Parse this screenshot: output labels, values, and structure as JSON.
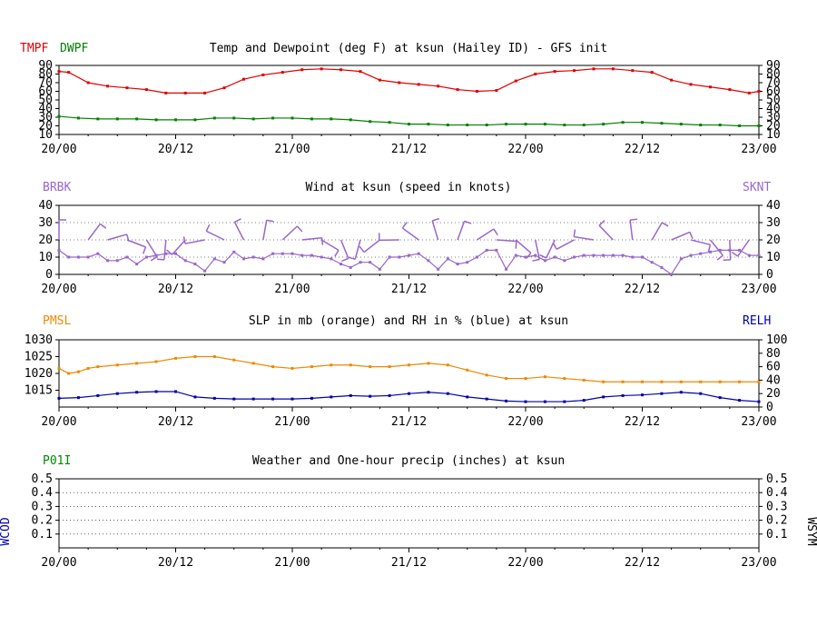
{
  "colors": {
    "temp": "#e00000",
    "dewpoint": "#008000",
    "wind": "#9966cc",
    "pressure": "#ee8800",
    "rh": "#0000aa",
    "precip": "#008800",
    "wcod": "#0000aa",
    "grid": "#000000"
  },
  "x_tick_labels": [
    "20/00",
    "20/12",
    "21/00",
    "21/12",
    "22/00",
    "22/12",
    "23/00"
  ],
  "chart_data": [
    {
      "type": "line",
      "title": "Temp and Dewpoint (deg F) at ksun  (Hailey ID) - GFS init",
      "left_label_1": "TMPF",
      "left_label_2": "DWPF",
      "ylim": [
        10,
        90
      ],
      "yticks": [
        "10",
        "20",
        "30",
        "40",
        "50",
        "60",
        "70",
        "80",
        "90"
      ],
      "x_range_hours": [
        0,
        72
      ],
      "series": [
        {
          "name": "TMPF",
          "x": [
            0,
            1,
            3,
            5,
            7,
            9,
            11,
            13,
            15,
            17,
            19,
            21,
            23,
            25,
            27,
            29,
            31,
            33,
            35,
            37,
            39,
            41,
            43,
            45,
            47,
            49,
            51,
            53,
            55,
            57,
            59,
            61,
            63,
            65,
            67,
            69,
            71,
            72
          ],
          "y": [
            83,
            82,
            70,
            66,
            64,
            62,
            58,
            58,
            58,
            64,
            74,
            79,
            82,
            85,
            86,
            85,
            83,
            73,
            70,
            68,
            66,
            62,
            60,
            61,
            72,
            80,
            83,
            84,
            86,
            86,
            84,
            82,
            73,
            68,
            65,
            62,
            58,
            60
          ]
        },
        {
          "name": "DWPF",
          "x": [
            0,
            2,
            4,
            6,
            8,
            10,
            12,
            14,
            16,
            18,
            20,
            22,
            24,
            26,
            28,
            30,
            32,
            34,
            36,
            38,
            40,
            42,
            44,
            46,
            48,
            50,
            52,
            54,
            56,
            58,
            60,
            62,
            64,
            66,
            68,
            70,
            72
          ],
          "y": [
            31,
            29,
            28,
            28,
            28,
            27,
            27,
            27,
            29,
            29,
            28,
            29,
            29,
            28,
            28,
            27,
            25,
            24,
            22,
            22,
            21,
            21,
            21,
            22,
            22,
            22,
            21,
            21,
            22,
            24,
            24,
            23,
            22,
            21,
            21,
            20,
            20
          ]
        }
      ]
    },
    {
      "type": "line",
      "title": "Wind at  ksun  (speed in knots)",
      "left_label": "BRBK",
      "right_label": "SKNT",
      "ylim": [
        0,
        40
      ],
      "yticks": [
        "0",
        "10",
        "20",
        "30",
        "40"
      ],
      "series": [
        {
          "name": "SKNT",
          "x": [
            0,
            1,
            2,
            3,
            4,
            5,
            6,
            7,
            8,
            9,
            10,
            11,
            12,
            13,
            14,
            15,
            16,
            17,
            18,
            19,
            20,
            21,
            22,
            23,
            24,
            25,
            26,
            27,
            28,
            29,
            30,
            31,
            32,
            33,
            34,
            35,
            36,
            37,
            38,
            39,
            40,
            41,
            42,
            43,
            44,
            45,
            46,
            47,
            48,
            49,
            50,
            51,
            52,
            53,
            54,
            55,
            56,
            57,
            58,
            59,
            60,
            61,
            62,
            63,
            64,
            65,
            66,
            67,
            68,
            69,
            70,
            71,
            72
          ],
          "y": [
            14,
            10,
            10,
            10,
            12,
            8,
            8,
            10,
            6,
            10,
            11,
            12,
            12,
            8,
            6,
            2,
            9,
            7,
            13,
            9,
            10,
            9,
            12,
            12,
            12,
            11,
            11,
            10,
            9,
            6,
            4,
            7,
            7,
            3,
            10,
            10,
            11,
            12,
            8,
            3,
            9,
            6,
            7,
            10,
            14,
            14,
            3,
            11,
            10,
            11,
            8,
            10,
            8,
            10,
            11,
            11,
            11,
            11,
            11,
            10,
            10,
            7,
            4,
            0,
            9,
            11,
            12,
            13,
            14,
            14,
            14,
            11,
            11
          ]
        },
        {
          "name": "BRBK",
          "x": [
            0,
            3,
            5,
            7,
            9,
            11,
            13,
            15,
            17,
            19,
            21,
            23,
            25,
            27,
            29,
            31,
            33,
            35,
            37,
            39,
            41,
            43,
            45,
            47,
            49,
            51,
            53,
            55,
            57,
            59,
            61,
            63,
            65,
            67,
            69,
            71
          ],
          "y": [
            20,
            20,
            20,
            20,
            20,
            20,
            20,
            20,
            20,
            20,
            20,
            20,
            20,
            20,
            20,
            20,
            20,
            20,
            20,
            20,
            20,
            20,
            20,
            20,
            20,
            20,
            20,
            20,
            20,
            20,
            20,
            20,
            20,
            20,
            20,
            20
          ]
        }
      ]
    },
    {
      "type": "line",
      "title": "SLP in mb (orange) and RH in % (blue) at  ksun",
      "left_label": "PMSL",
      "right_label": "RELH",
      "ylim_left": [
        1010,
        1030
      ],
      "yticks_left": [
        "1015",
        "1020",
        "1025",
        "1030"
      ],
      "ylim_right": [
        0,
        100
      ],
      "yticks_right": [
        "0",
        "20",
        "40",
        "60",
        "80",
        "100"
      ],
      "series": [
        {
          "name": "PMSL",
          "x": [
            0,
            1,
            2,
            3,
            4,
            6,
            8,
            10,
            12,
            14,
            16,
            18,
            20,
            22,
            24,
            26,
            28,
            30,
            32,
            34,
            36,
            38,
            40,
            42,
            44,
            46,
            48,
            50,
            52,
            54,
            56,
            58,
            60,
            62,
            64,
            66,
            68,
            70,
            72
          ],
          "y": [
            1021.5,
            1020,
            1020.5,
            1021.5,
            1022,
            1022.5,
            1023,
            1023.5,
            1024.5,
            1025,
            1025,
            1024,
            1023,
            1022,
            1021.5,
            1022,
            1022.5,
            1022.5,
            1022,
            1022,
            1022.5,
            1023,
            1022.5,
            1021,
            1019.5,
            1018.5,
            1018.5,
            1019,
            1018.5,
            1018,
            1017.5,
            1017.5,
            1017.5,
            1017.5,
            1017.5,
            1017.5,
            1017.5,
            1017.5,
            1017.5
          ]
        },
        {
          "name": "RELH",
          "x": [
            0,
            2,
            4,
            6,
            8,
            10,
            12,
            14,
            16,
            18,
            20,
            22,
            24,
            26,
            28,
            30,
            32,
            34,
            36,
            38,
            40,
            42,
            44,
            46,
            48,
            50,
            52,
            54,
            56,
            58,
            60,
            62,
            64,
            66,
            68,
            70,
            72
          ],
          "y": [
            13,
            14,
            17,
            20,
            22,
            23,
            23,
            15,
            13,
            12,
            12,
            12,
            12,
            13,
            15,
            17,
            16,
            17,
            20,
            22,
            20,
            15,
            12,
            9,
            8,
            8,
            8,
            10,
            15,
            17,
            18,
            20,
            22,
            20,
            14,
            10,
            8
          ]
        }
      ]
    },
    {
      "type": "line",
      "title": "Weather and One-hour precip (inches) at  ksun",
      "left_label": "P01I",
      "left_vertical_label": "WCOD",
      "right_vertical_label": "WSYM",
      "ylim": [
        0,
        0.5
      ],
      "yticks": [
        "0.1",
        "0.2",
        "0.3",
        "0.4",
        "0.5"
      ],
      "series": []
    }
  ]
}
